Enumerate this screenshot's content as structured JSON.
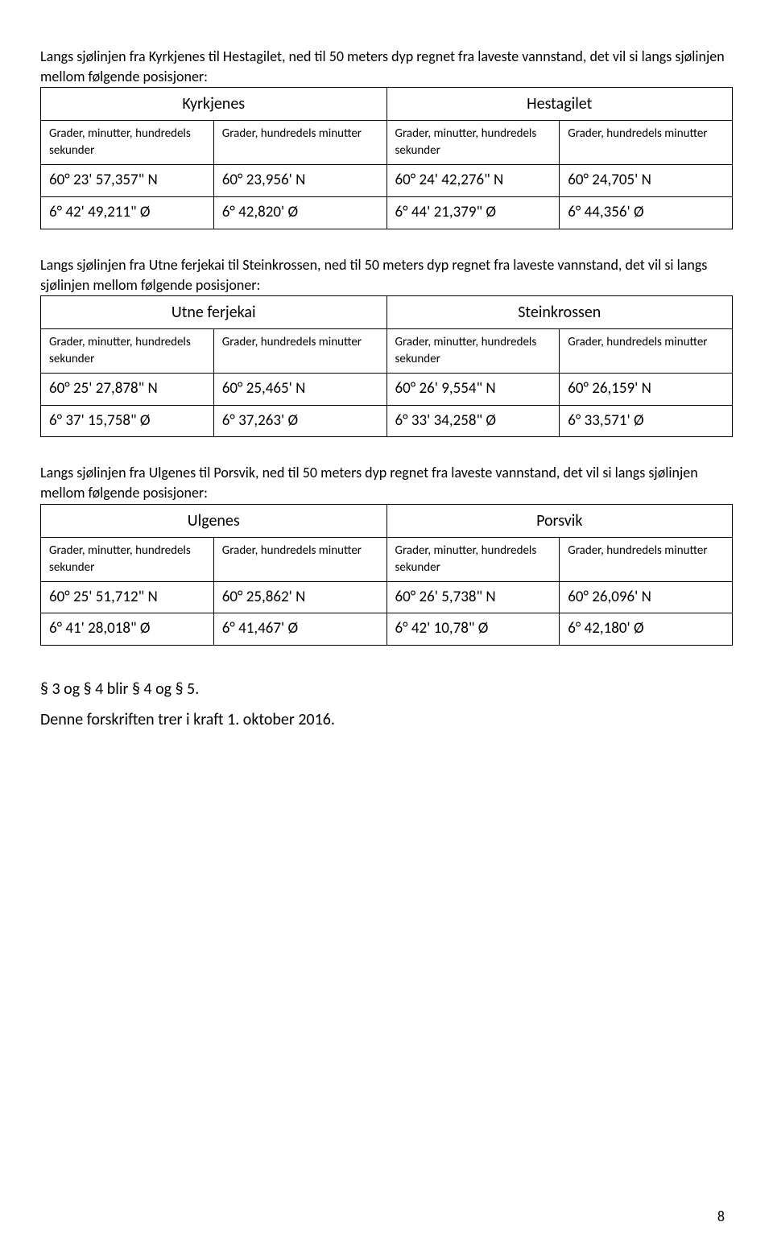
{
  "sections": [
    {
      "intro": "Langs sjølinjen fra Kyrkjenes til Hestagilet, ned til 50 meters dyp regnet fra laveste vannstand, det vil si langs sjølinjen mellom følgende posisjoner:",
      "leftName": "Kyrkjenes",
      "rightName": "Hestagilet",
      "colLabel1": "Grader, minutter, hundredels sekunder",
      "colLabel2": "Grader, hundredels minutter",
      "colLabel3": "Grader, minutter, hundredels sekunder",
      "colLabel4": "Grader, hundredels minutter",
      "r1c1": "60° 23' 57,357\" N",
      "r1c2": "60° 23,956' N",
      "r1c3": "60° 24' 42,276\" N",
      "r1c4": "60° 24,705' N",
      "r2c1": "6° 42' 49,211\" Ø",
      "r2c2": "6° 42,820' Ø",
      "r2c3": "6° 44' 21,379\" Ø",
      "r2c4": "6° 44,356' Ø"
    },
    {
      "intro": "Langs sjølinjen fra Utne ferjekai til Steinkrossen, ned til 50 meters dyp regnet fra laveste vannstand, det vil si langs sjølinjen mellom følgende posisjoner:",
      "leftName": "Utne ferjekai",
      "rightName": "Steinkrossen",
      "colLabel1": "Grader, minutter, hundredels sekunder",
      "colLabel2": "Grader, hundredels minutter",
      "colLabel3": "Grader, minutter, hundredels sekunder",
      "colLabel4": "Grader, hundredels minutter",
      "r1c1": "60° 25' 27,878\" N",
      "r1c2": "60° 25,465' N",
      "r1c3": "60° 26' 9,554\" N",
      "r1c4": "60° 26,159' N",
      "r2c1": "6° 37' 15,758\" Ø",
      "r2c2": "6° 37,263' Ø",
      "r2c3": "6° 33' 34,258\" Ø",
      "r2c4": "6° 33,571' Ø"
    },
    {
      "intro": "Langs sjølinjen fra Ulgenes til Porsvik, ned til 50 meters dyp regnet fra laveste vannstand, det vil si langs sjølinjen mellom følgende posisjoner:",
      "leftName": "Ulgenes",
      "rightName": "Porsvik",
      "colLabel1": "Grader, minutter, hundredels sekunder",
      "colLabel2": "Grader, hundredels minutter",
      "colLabel3": "Grader, minutter, hundredels sekunder",
      "colLabel4": "Grader, hundredels minutter",
      "r1c1": "60° 25' 51,712\" N",
      "r1c2": "60° 25,862' N",
      "r1c3": "60° 26' 5,738\" N",
      "r1c4": "60° 26,096' N",
      "r2c1": "6° 41' 28,018\" Ø",
      "r2c2": "6° 41,467' Ø",
      "r2c3": "6° 42' 10,78\" Ø",
      "r2c4": "6° 42,180' Ø"
    }
  ],
  "footer1": "§ 3 og § 4 blir § 4 og § 5.",
  "footer2": "Denne forskriften trer i kraft 1. oktober 2016.",
  "pageNum": "8"
}
